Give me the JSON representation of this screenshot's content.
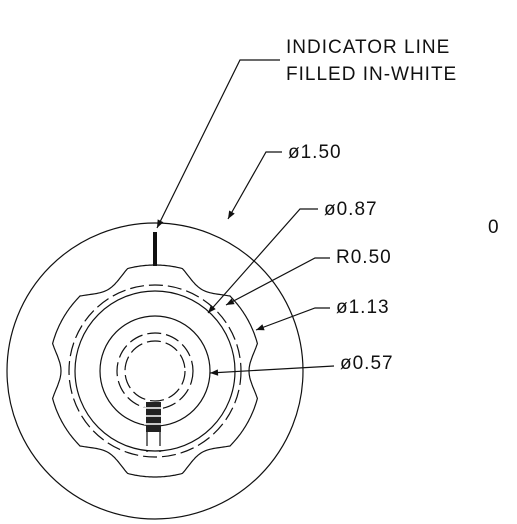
{
  "notes": {
    "indicator": [
      "INDICATOR LINE",
      "FILLED IN-WHITE"
    ],
    "dimensions": [
      "ø1.50",
      "ø0.87",
      "R0.50",
      "ø1.13",
      "ø0.57"
    ],
    "side": "0"
  }
}
